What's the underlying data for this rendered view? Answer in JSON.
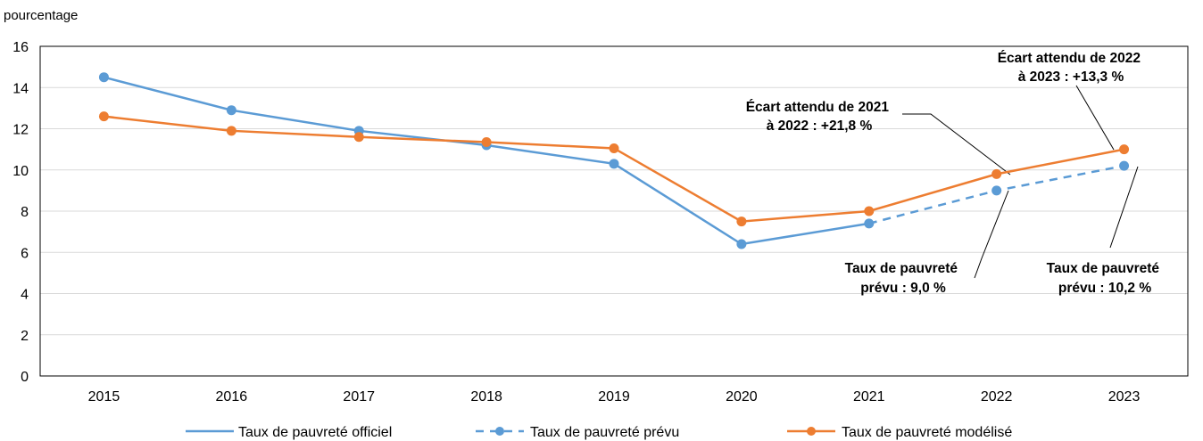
{
  "chart_data": {
    "type": "line",
    "ylabel": "pourcentage",
    "ylim": [
      0,
      16
    ],
    "yticks": [
      0,
      2,
      4,
      6,
      8,
      10,
      12,
      14,
      16
    ],
    "categories": [
      "2015",
      "2016",
      "2017",
      "2018",
      "2019",
      "2020",
      "2021",
      "2022",
      "2023"
    ],
    "grid": "horizontal",
    "legend_position": "bottom",
    "series": [
      {
        "name": "Taux de pauvreté officiel",
        "color": "#5B9BD5",
        "style": "solid",
        "markers": false,
        "values": [
          14.5,
          12.9,
          11.9,
          11.2,
          10.3,
          6.4,
          7.4,
          null,
          null
        ]
      },
      {
        "name": "Taux de pauvreté prévu",
        "color": "#5B9BD5",
        "style": "dashed",
        "markers": true,
        "values": [
          14.5,
          12.9,
          11.9,
          11.2,
          10.3,
          6.4,
          7.4,
          9.0,
          10.2
        ]
      },
      {
        "name": "Taux de pauvreté modélisé",
        "color": "#ED7D31",
        "style": "solid",
        "markers": true,
        "values": [
          12.6,
          11.9,
          11.6,
          11.35,
          11.05,
          7.5,
          8.0,
          9.8,
          11.0
        ]
      }
    ],
    "annotations": [
      {
        "lines": [
          "Écart attendu de 2021",
          "à 2022 : +21,8 %"
        ]
      },
      {
        "lines": [
          "Écart attendu de 2022",
          "à 2023 : +13,3 %"
        ]
      },
      {
        "lines": [
          "Taux de pauvreté",
          "prévu : 9,0 %"
        ]
      },
      {
        "lines": [
          "Taux de pauvreté",
          "prévu : 10,2 %"
        ]
      }
    ]
  }
}
